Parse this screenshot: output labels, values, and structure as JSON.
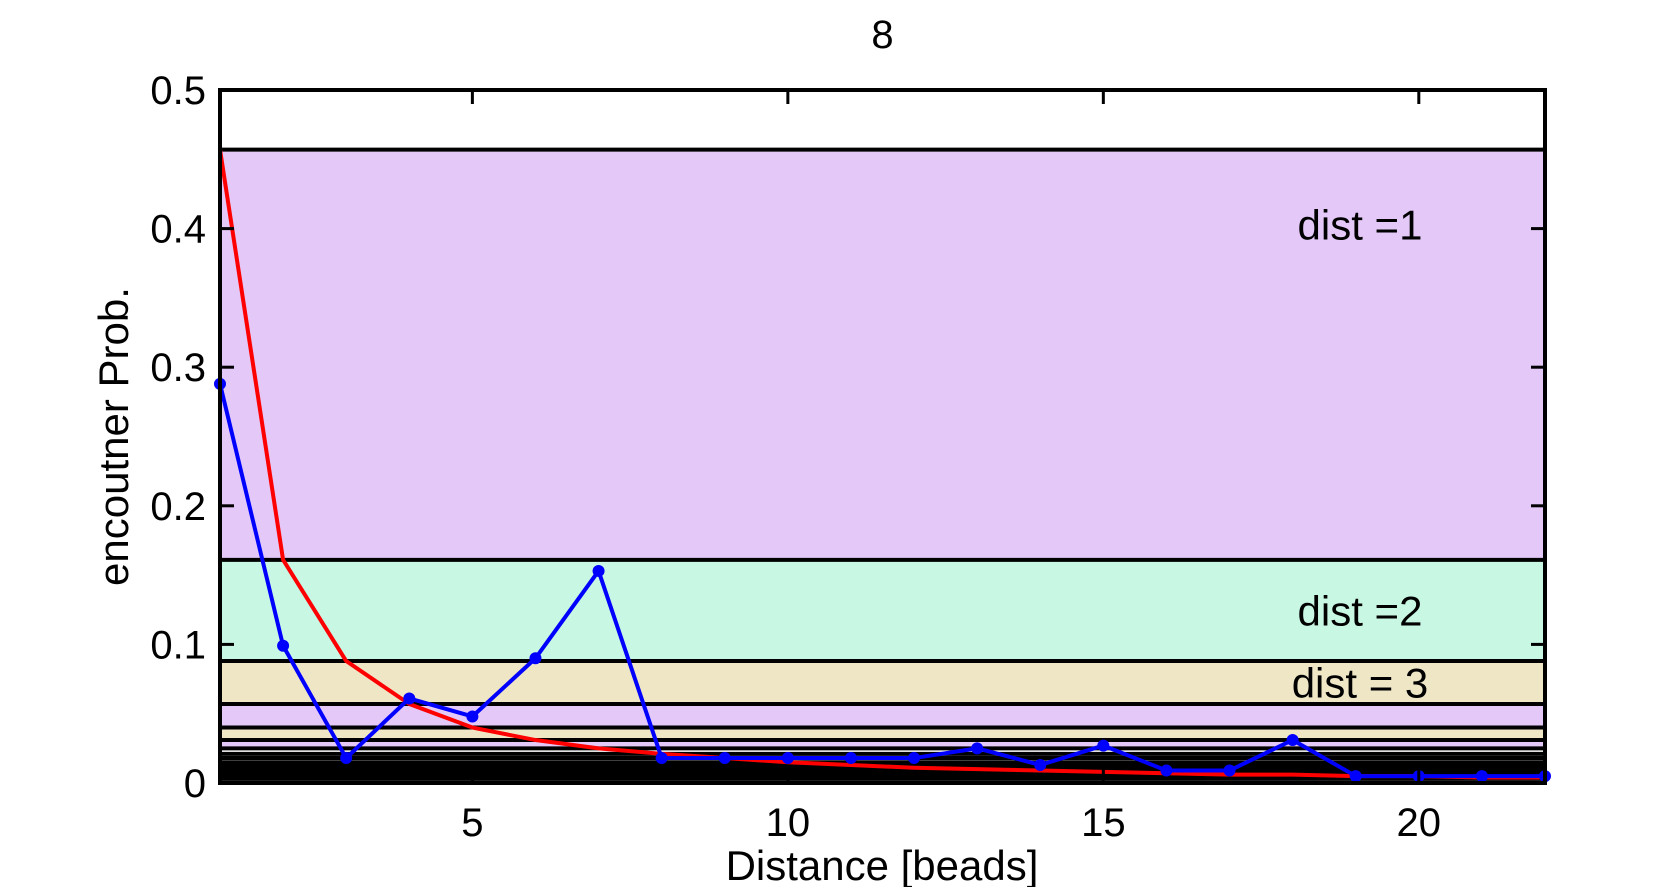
{
  "chart_data": {
    "type": "line",
    "title": "8",
    "xlabel": "Distance [beads]",
    "ylabel": "encoutner Prob.",
    "xlim": [
      1,
      22
    ],
    "ylim": [
      0,
      0.5
    ],
    "xticks": [
      5,
      10,
      15,
      20
    ],
    "xtick_labels": [
      "5",
      "10",
      "15",
      "20"
    ],
    "yticks": [
      0,
      0.1,
      0.2,
      0.3,
      0.4,
      0.5
    ],
    "ytick_labels": [
      "0",
      "0.1",
      "0.2",
      "0.3",
      "0.4",
      "0.5"
    ],
    "grid": false,
    "bands": [
      {
        "label": "dist =1",
        "y0": 0.161,
        "y1": 0.457,
        "color": "#e3c8f8"
      },
      {
        "label": "dist =2",
        "y0": 0.088,
        "y1": 0.161,
        "color": "#c8f7e3"
      },
      {
        "label": "dist = 3",
        "y0": 0.057,
        "y1": 0.088,
        "color": "#efe6c6"
      },
      {
        "label": "",
        "y0": 0.04,
        "y1": 0.057,
        "color": "#e3c8f8"
      },
      {
        "label": "",
        "y0": 0.031,
        "y1": 0.04,
        "color": "#efe6c6"
      },
      {
        "label": "",
        "y0": 0.025,
        "y1": 0.031,
        "color": "#e3c8f8"
      }
    ],
    "boundaries": [
      0.457,
      0.161,
      0.088,
      0.057,
      0.04,
      0.031,
      0.025,
      0.021,
      0.018,
      0.015,
      0.013,
      0.011,
      0.009,
      0.007,
      0.005,
      0.003
    ],
    "series": [
      {
        "color": "#ff0000",
        "marker": "none",
        "x": [
          1,
          2,
          3,
          4,
          5,
          6,
          7,
          8,
          9,
          10,
          11,
          12,
          13,
          14,
          15,
          16,
          17,
          18,
          19,
          20,
          21,
          22
        ],
        "y": [
          0.457,
          0.161,
          0.088,
          0.057,
          0.04,
          0.031,
          0.025,
          0.021,
          0.018,
          0.015,
          0.013,
          0.011,
          0.01,
          0.009,
          0.008,
          0.007,
          0.006,
          0.006,
          0.005,
          0.005,
          0.004,
          0.004
        ]
      },
      {
        "color": "#0000ff",
        "marker": "dot",
        "x": [
          1,
          2,
          3,
          4,
          5,
          6,
          7,
          8,
          9,
          10,
          11,
          12,
          13,
          14,
          15,
          16,
          17,
          18,
          19,
          20,
          21,
          22
        ],
        "y": [
          0.288,
          0.099,
          0.018,
          0.061,
          0.048,
          0.09,
          0.153,
          0.018,
          0.018,
          0.018,
          0.018,
          0.018,
          0.025,
          0.013,
          0.027,
          0.009,
          0.009,
          0.031,
          0.005,
          0.005,
          0.005,
          0.005
        ]
      }
    ]
  }
}
